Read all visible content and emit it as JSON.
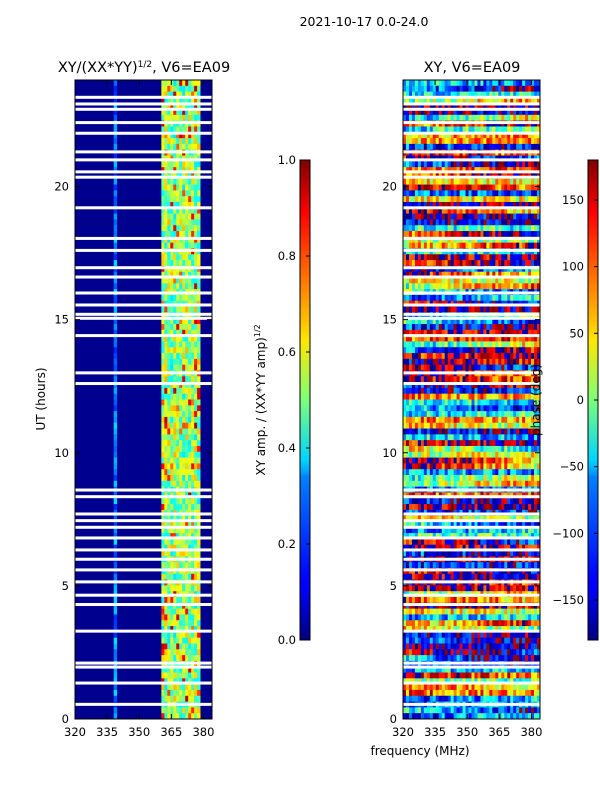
{
  "figure": {
    "suptitle": "2021-10-17 0.0-24.0",
    "shared_xlabel": "frequency (MHz)"
  },
  "chart_data": [
    {
      "type": "heatmap",
      "title": "XY/(XX*YY)^1/2, V6=EA09",
      "title_main": "XY/(XX*YY)",
      "title_exp": "1/2",
      "title_tail": ", V6=EA09",
      "xlabel": "frequency (MHz)",
      "ylabel": "UT (hours)",
      "xlim": [
        320,
        384
      ],
      "ylim": [
        0,
        24
      ],
      "xticks": [
        320,
        335,
        350,
        365,
        380
      ],
      "yticks": [
        0,
        5,
        10,
        15,
        20
      ],
      "colorbar": {
        "label_main": "XY amp. / (XX*YY amp)",
        "label_exp": "1/2",
        "range": [
          0.0,
          1.0
        ],
        "ticks": [
          "0.0",
          "0.2",
          "0.4",
          "0.6",
          "0.8",
          "1.0"
        ],
        "tick_values": [
          0.0,
          0.2,
          0.4,
          0.6,
          0.8,
          1.0
        ]
      },
      "description": "Mostly low amplitude (~0.05) across band; elevated amplitude columns (0.4-0.9) between 361 and 378 MHz; horizontal flagged (white) gaps."
    },
    {
      "type": "heatmap",
      "title": "XY, V6=EA09",
      "xlabel": "frequency (MHz)",
      "ylabel": "",
      "xlim": [
        320,
        384
      ],
      "ylim": [
        0,
        24
      ],
      "xticks": [
        320,
        335,
        350,
        365,
        380
      ],
      "yticks": [
        0,
        5,
        10,
        15,
        20
      ],
      "colorbar": {
        "label": "phase (deg)",
        "range": [
          -180,
          180
        ],
        "ticks": [
          "150",
          "100",
          "50",
          "0",
          "−50",
          "−100",
          "−150"
        ],
        "tick_values": [
          150,
          100,
          50,
          0,
          -50,
          -100,
          -150
        ]
      },
      "description": "Phase spans full -180..180 range with noisy horizontal banding and white flagged rows."
    }
  ],
  "flagged_hours": [
    0.55,
    1.35,
    1.95,
    2.1,
    3.3,
    4.3,
    4.65,
    5.15,
    5.6,
    6.0,
    6.35,
    6.8,
    7.2,
    7.45,
    7.7,
    8.35,
    8.6,
    12.6,
    13.0,
    14.4,
    15.05,
    15.2,
    15.55,
    16.0,
    16.6,
    16.95,
    17.6,
    18.05,
    19.2,
    20.35,
    20.55,
    21.0,
    21.3,
    22.0,
    22.4,
    22.9,
    23.1,
    23.35
  ]
}
